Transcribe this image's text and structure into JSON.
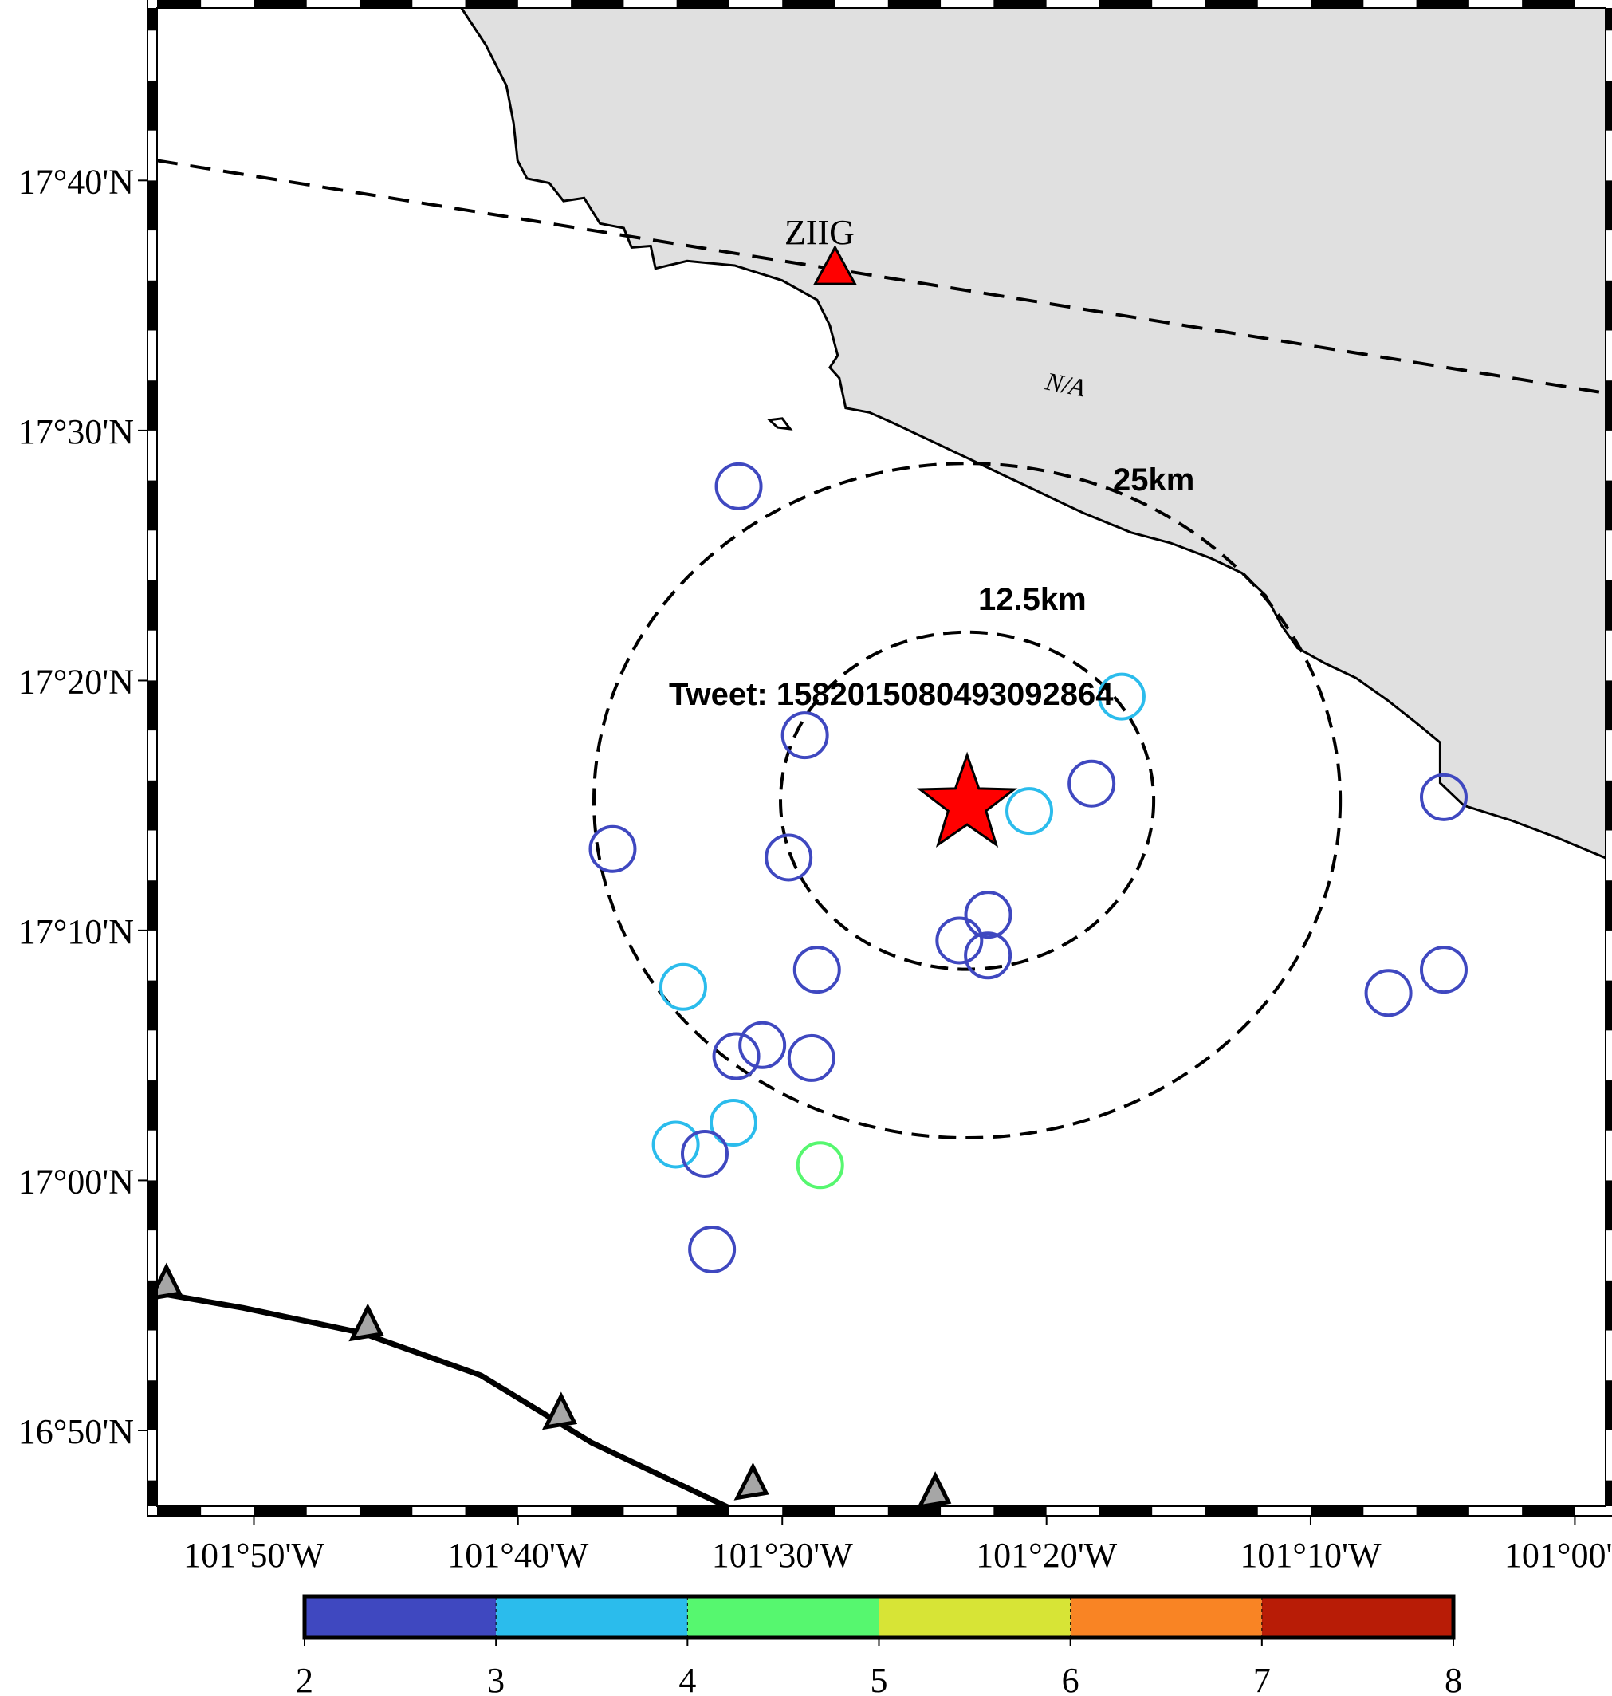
{
  "map": {
    "event_label": "Tweet: 1582015080493092864",
    "epicenter": {
      "lon": -101.3834,
      "lat": 17.2532
    },
    "range_rings": [
      {
        "label": "12.5km",
        "radius_km": 12.5
      },
      {
        "label": "25km",
        "radius_km": 25
      }
    ],
    "station": {
      "name": "ZIIG",
      "lon": -101.4667,
      "lat": 17.6083
    },
    "fault_label": "N/A",
    "land_color": "#e0e0e0",
    "ocean_color": "#ffffff",
    "epicenter_color": "#ff0000",
    "station_color": "#ff0000",
    "trench_triangle_color": "#a6a6a6",
    "axes": {
      "lon_ticks": [
        "101°50'W",
        "101°40'W",
        "101°30'W",
        "101°20'W",
        "101°10'W",
        "101°00'W"
      ],
      "lat_ticks": [
        "17°40'N",
        "17°30'N",
        "17°20'N",
        "17°10'N",
        "17°00'N",
        "16°50'N"
      ],
      "lon_range": [
        -101.8944,
        -100.9806
      ],
      "lat_range": [
        16.7828,
        17.7817
      ]
    },
    "colorbar": {
      "ticks": [
        "2",
        "3",
        "4",
        "5",
        "6",
        "7",
        "8"
      ],
      "colors": [
        "#3f48c0",
        "#2bbcec",
        "#56f76f",
        "#d7e436",
        "#f98424",
        "#b81c06"
      ]
    },
    "aftershocks": [
      {
        "lon": -101.5275,
        "lat": 17.4628,
        "mag": 2.5
      },
      {
        "lon": -101.2859,
        "lat": 17.3226,
        "mag": 3.5
      },
      {
        "lon": -101.4857,
        "lat": 17.2968,
        "mag": 2.5
      },
      {
        "lon": -101.3049,
        "lat": 17.2646,
        "mag": 2.5
      },
      {
        "lon": -101.3442,
        "lat": 17.2463,
        "mag": 3.5
      },
      {
        "lon": -101.0827,
        "lat": 17.2555,
        "mag": 2.5
      },
      {
        "lon": -101.607,
        "lat": 17.221,
        "mag": 2.5
      },
      {
        "lon": -101.496,
        "lat": 17.2153,
        "mag": 2.5
      },
      {
        "lon": -101.3701,
        "lat": 17.1772,
        "mag": 2.5
      },
      {
        "lon": -101.3883,
        "lat": 17.16,
        "mag": 2.5
      },
      {
        "lon": -101.3703,
        "lat": 17.15,
        "mag": 2.5
      },
      {
        "lon": -101.4781,
        "lat": 17.1405,
        "mag": 2.5
      },
      {
        "lon": -101.5625,
        "lat": 17.129,
        "mag": 3.5
      },
      {
        "lon": -101.1176,
        "lat": 17.125,
        "mag": 2.5
      },
      {
        "lon": -101.0827,
        "lat": 17.1405,
        "mag": 2.5
      },
      {
        "lon": -101.5126,
        "lat": 17.0902,
        "mag": 2.5
      },
      {
        "lon": -101.529,
        "lat": 17.0829,
        "mag": 2.5
      },
      {
        "lon": -101.4816,
        "lat": 17.0816,
        "mag": 2.5
      },
      {
        "lon": -101.5308,
        "lat": 17.0385,
        "mag": 3.5
      },
      {
        "lon": -101.5672,
        "lat": 17.0239,
        "mag": 3.5
      },
      {
        "lon": -101.5489,
        "lat": 17.0178,
        "mag": 2.5
      },
      {
        "lon": -101.4761,
        "lat": 17.0102,
        "mag": 4.5
      },
      {
        "lon": -101.5443,
        "lat": 16.954,
        "mag": 2.5
      }
    ],
    "coastline": [
      [
        -101.7024,
        17.7817
      ],
      [
        -101.687,
        17.757
      ],
      [
        -101.674,
        17.73
      ],
      [
        -101.6695,
        17.705
      ],
      [
        -101.667,
        17.68
      ],
      [
        -101.661,
        17.668
      ],
      [
        -101.647,
        17.665
      ],
      [
        -101.638,
        17.653
      ],
      [
        -101.625,
        17.655
      ],
      [
        -101.615,
        17.638
      ],
      [
        -101.6,
        17.635
      ],
      [
        -101.595,
        17.622
      ],
      [
        -101.583,
        17.623
      ],
      [
        -101.58,
        17.608
      ],
      [
        -101.56,
        17.613
      ],
      [
        -101.53,
        17.61
      ],
      [
        -101.5,
        17.6
      ],
      [
        -101.478,
        17.587
      ],
      [
        -101.47,
        17.57
      ],
      [
        -101.465,
        17.55
      ],
      [
        -101.47,
        17.542
      ],
      [
        -101.464,
        17.535
      ],
      [
        -101.46,
        17.515
      ],
      [
        -101.445,
        17.512
      ],
      [
        -101.43,
        17.505
      ],
      [
        -101.4,
        17.49
      ],
      [
        -101.37,
        17.475
      ],
      [
        -101.34,
        17.46
      ],
      [
        -101.31,
        17.445
      ],
      [
        -101.28,
        17.432
      ],
      [
        -101.255,
        17.425
      ],
      [
        -101.23,
        17.415
      ],
      [
        -101.21,
        17.405
      ],
      [
        -101.195,
        17.39
      ],
      [
        -101.185,
        17.37
      ],
      [
        -101.175,
        17.355
      ],
      [
        -101.158,
        17.345
      ],
      [
        -101.138,
        17.335
      ],
      [
        -101.118,
        17.32
      ],
      [
        -101.1,
        17.305
      ],
      [
        -101.085,
        17.292
      ],
      [
        -101.085,
        17.265
      ],
      [
        -101.07,
        17.25
      ],
      [
        -101.04,
        17.24
      ],
      [
        -101.01,
        17.228
      ],
      [
        -100.9806,
        17.215
      ]
    ],
    "islet": [
      [
        -101.508,
        17.507
      ],
      [
        -101.503,
        17.502
      ],
      [
        -101.495,
        17.501
      ],
      [
        -101.5,
        17.508
      ],
      [
        -101.508,
        17.507
      ]
    ],
    "fault": [
      [
        -101.8944,
        17.68
      ],
      [
        -100.9806,
        17.525
      ]
    ],
    "trench": [
      [
        -101.8944,
        16.925
      ],
      [
        -101.84,
        16.915
      ],
      [
        -101.765,
        16.8983
      ],
      [
        -101.69,
        16.87
      ],
      [
        -101.62,
        16.825
      ],
      [
        -101.53,
        16.78
      ]
    ],
    "trench_teeth": [
      {
        "lon": -101.89,
        "lat": 16.927
      },
      {
        "lon": -101.763,
        "lat": 16.9
      },
      {
        "lon": -101.641,
        "lat": 16.841
      },
      {
        "lon": -101.52,
        "lat": 16.794
      },
      {
        "lon": -101.405,
        "lat": 16.788
      }
    ]
  }
}
